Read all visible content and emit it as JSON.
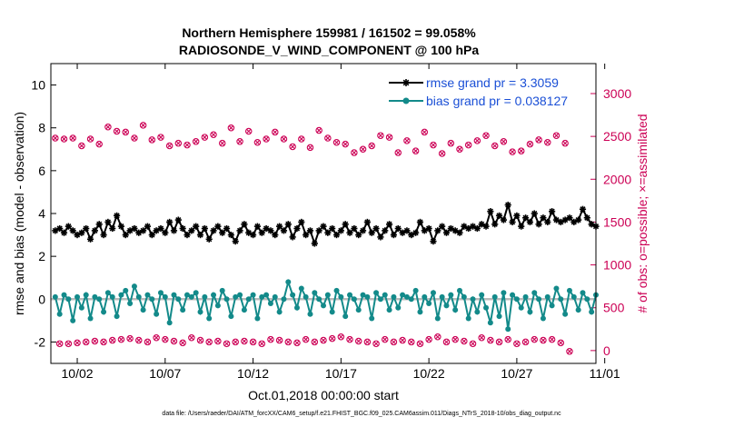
{
  "chart_data": {
    "type": "line",
    "title_line1": "Northern Hemisphere 159981 / 161502 = 99.058%",
    "title_line2": "RADIOSONDE_V_WIND_COMPONENT @ 100 hPa",
    "xlabel": "Oct.01,2018 00:00:00 start",
    "ylabel": "rmse and bias (model - observation)",
    "y2label": "# of obs: o=possible; ×=assimilated",
    "xlim": [
      0.5,
      31.5
    ],
    "ylim": [
      -3,
      11
    ],
    "y2lim": [
      -150,
      3350
    ],
    "xticks": [
      2,
      7,
      12,
      17,
      22,
      27,
      32
    ],
    "xtick_labels": [
      "10/02",
      "10/07",
      "10/12",
      "10/17",
      "10/22",
      "10/27",
      "11/01"
    ],
    "yticks": [
      -2,
      0,
      2,
      4,
      6,
      8,
      10
    ],
    "y2ticks": [
      0,
      500,
      1000,
      1500,
      2000,
      2500,
      3000
    ],
    "zero_line": 0,
    "n_points": 124,
    "day_start": 0.75,
    "day_step": 0.25,
    "series": [
      {
        "name": "rmse grand pr = 3.3059",
        "color": "#000000",
        "axis": "left",
        "values": [
          3.2,
          3.3,
          3.1,
          3.4,
          3.2,
          3.0,
          3.1,
          3.3,
          2.8,
          3.2,
          3.5,
          3.0,
          3.6,
          3.3,
          3.9,
          3.4,
          3.0,
          3.2,
          3.3,
          3.1,
          3.2,
          3.4,
          3.0,
          3.2,
          3.3,
          3.1,
          3.6,
          3.2,
          3.7,
          3.3,
          3.0,
          3.2,
          3.4,
          3.0,
          3.3,
          2.8,
          3.2,
          3.4,
          3.1,
          3.3,
          3.0,
          2.7,
          3.2,
          3.5,
          3.1,
          3.0,
          3.4,
          3.1,
          3.3,
          3.2,
          3.0,
          3.4,
          3.2,
          3.5,
          2.9,
          3.3,
          3.6,
          3.0,
          3.2,
          2.6,
          3.2,
          3.4,
          3.1,
          3.3,
          3.0,
          3.2,
          3.5,
          3.1,
          3.3,
          3.0,
          3.2,
          3.6,
          3.1,
          3.3,
          2.9,
          3.2,
          3.5,
          3.0,
          3.3,
          3.1,
          3.2,
          3.0,
          3.1,
          3.6,
          3.2,
          3.3,
          2.7,
          3.2,
          3.4,
          3.1,
          3.3,
          3.2,
          3.1,
          3.4,
          3.3,
          3.4,
          3.3,
          3.5,
          3.4,
          4.1,
          3.5,
          3.9,
          3.7,
          4.4,
          3.6,
          3.9,
          3.4,
          3.8,
          3.6,
          4.0,
          3.5,
          3.8,
          3.6,
          4.1,
          3.7,
          3.6,
          3.7,
          3.8,
          3.6,
          3.7,
          4.2,
          3.8,
          3.5,
          3.4
        ],
        "marker": "asterisk"
      },
      {
        "name": "bias grand pr = 0.038127",
        "color": "#138a8a",
        "axis": "left",
        "values": [
          0.1,
          -0.7,
          0.2,
          0.0,
          -1.0,
          0.1,
          -0.4,
          0.2,
          -0.9,
          0.1,
          0.0,
          -0.6,
          0.3,
          0.1,
          -0.8,
          0.2,
          0.4,
          -0.2,
          0.6,
          0.1,
          -0.5,
          0.2,
          0.0,
          -0.7,
          0.3,
          0.1,
          -1.1,
          0.2,
          0.0,
          -0.5,
          0.2,
          0.1,
          0.3,
          -0.6,
          0.1,
          -0.9,
          0.2,
          -0.3,
          0.4,
          0.0,
          -0.8,
          0.1,
          0.2,
          -0.5,
          0.0,
          0.2,
          -0.9,
          0.1,
          0.2,
          -0.2,
          0.1,
          -0.6,
          0.0,
          0.8,
          0.2,
          -0.4,
          0.5,
          0.1,
          -0.7,
          0.3,
          0.0,
          -0.3,
          0.2,
          -0.6,
          0.4,
          0.1,
          -0.8,
          0.2,
          0.0,
          -0.5,
          0.2,
          0.1,
          -0.9,
          0.3,
          0.0,
          0.2,
          -0.5,
          0.1,
          -0.4,
          0.2,
          0.1,
          0.0,
          0.4,
          -0.6,
          0.1,
          -0.2,
          0.3,
          -0.9,
          0.1,
          -0.3,
          0.2,
          -0.5,
          0.4,
          0.1,
          -0.9,
          0.0,
          -0.6,
          0.2,
          -0.4,
          -1.1,
          0.1,
          -0.8,
          0.3,
          -1.4,
          0.2,
          0.0,
          -0.4,
          0.1,
          -0.6,
          0.3,
          0.0,
          -0.9,
          0.1,
          -0.3,
          0.5,
          0.0,
          -0.7,
          0.4,
          0.1,
          -0.5,
          0.3,
          0.0,
          -0.6,
          0.2
        ],
        "marker": "circle"
      },
      {
        "name": "obs possible",
        "color": "#cc0055",
        "axis": "right",
        "values": [
          2480,
          80,
          2470,
          80,
          2480,
          90,
          2390,
          100,
          2470,
          110,
          2410,
          100,
          2610,
          120,
          2560,
          130,
          2550,
          140,
          2480,
          120,
          2630,
          100,
          2460,
          150,
          2490,
          130,
          2390,
          110,
          2420,
          90,
          2400,
          150,
          2440,
          120,
          2490,
          100,
          2520,
          110,
          2420,
          80,
          2600,
          100,
          2440,
          110,
          2560,
          100,
          2430,
          80,
          2470,
          130,
          2550,
          120,
          2470,
          100,
          2380,
          90,
          2470,
          130,
          2370,
          100,
          2570,
          120,
          2480,
          140,
          2430,
          160,
          2410,
          130,
          2310,
          110,
          2350,
          100,
          2390,
          80,
          2510,
          130,
          2490,
          100,
          2310,
          120,
          2450,
          100,
          2330,
          80,
          2550,
          130,
          2400,
          160,
          2300,
          100,
          2420,
          130,
          2350,
          110,
          2400,
          80,
          2450,
          150,
          2510,
          120,
          2390,
          100,
          2440,
          130,
          2320,
          80,
          2330,
          100,
          2410,
          130,
          2460,
          120,
          2430,
          130,
          2510,
          90,
          2420,
          -10
        ]
      },
      {
        "name": "obs assimilated",
        "color": "#cc0055",
        "axis": "right",
        "values": [
          2480,
          80,
          2470,
          80,
          2480,
          90,
          2390,
          100,
          2470,
          110,
          2410,
          100,
          2610,
          120,
          2560,
          130,
          2550,
          140,
          2480,
          120,
          2630,
          100,
          2460,
          150,
          2490,
          130,
          2390,
          110,
          2420,
          90,
          2400,
          150,
          2440,
          120,
          2490,
          100,
          2520,
          110,
          2420,
          80,
          2600,
          100,
          2440,
          110,
          2560,
          100,
          2430,
          80,
          2470,
          130,
          2550,
          120,
          2470,
          100,
          2380,
          90,
          2470,
          130,
          2370,
          100,
          2570,
          120,
          2480,
          140,
          2430,
          160,
          2410,
          130,
          2310,
          110,
          2350,
          100,
          2390,
          80,
          2510,
          130,
          2490,
          100,
          2310,
          120,
          2450,
          100,
          2330,
          80,
          2550,
          130,
          2400,
          160,
          2300,
          100,
          2420,
          130,
          2350,
          110,
          2400,
          80,
          2450,
          150,
          2510,
          120,
          2390,
          100,
          2440,
          130,
          2320,
          80,
          2330,
          100,
          2410,
          130,
          2460,
          120,
          2430,
          130,
          2510,
          90,
          2420,
          -10
        ]
      }
    ],
    "legend_position": "top-right"
  },
  "footer": "data file: /Users/raeder/DAI/ATM_forcXX/CAM6_setup/f.e21.FHIST_BGC.f09_025.CAM6assim.011/Diags_NTrS_2018-10/obs_diag_output.nc"
}
